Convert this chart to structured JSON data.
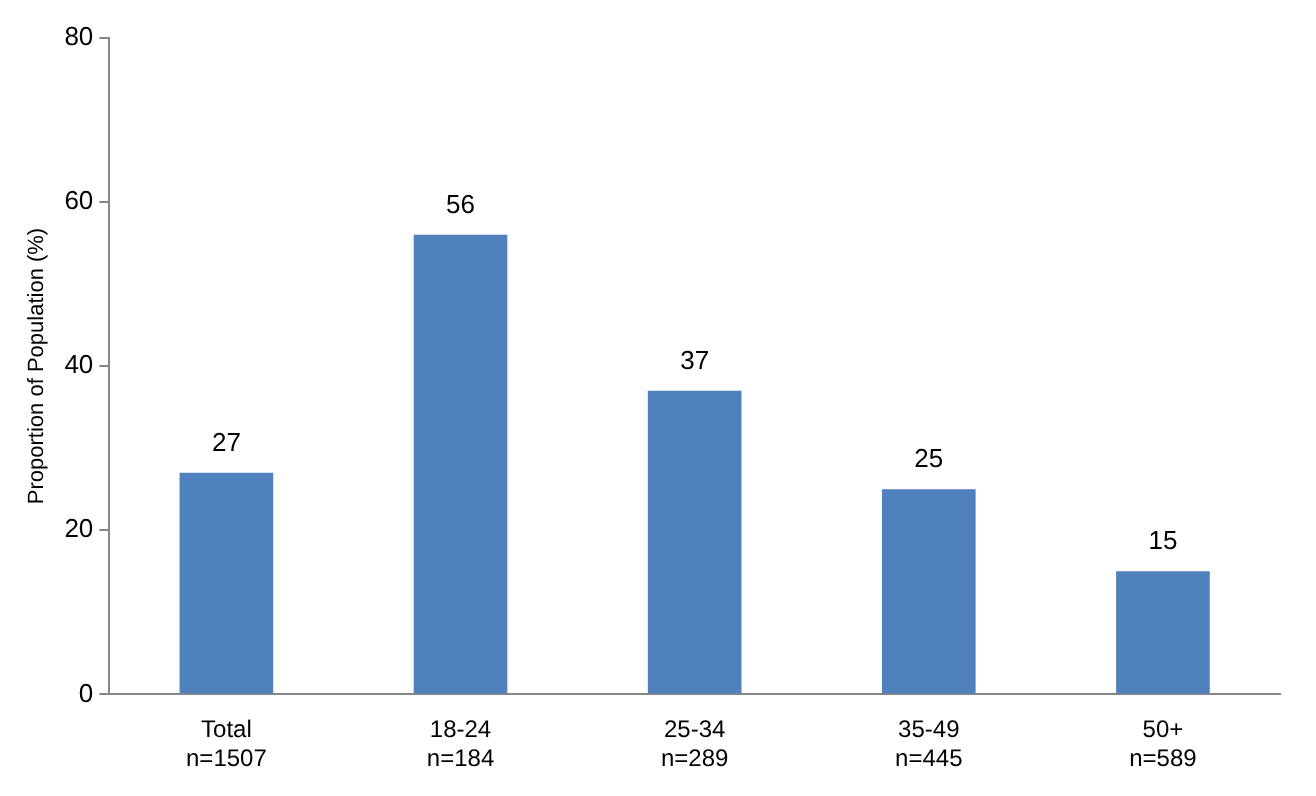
{
  "chart_data": {
    "type": "bar",
    "ylabel": "Proportion of Population (%)",
    "categories": [
      "Total\nn=1507",
      "18-24\nn=184",
      "25-34\nn=289",
      "35-49\nn=445",
      "50+\nn=589"
    ],
    "values": [
      27,
      56,
      37,
      25,
      15
    ],
    "color": "#4f81bd",
    "ylim": [
      0,
      80
    ],
    "yticks": [
      0,
      20,
      40,
      60,
      80
    ],
    "grid": false,
    "legend": false,
    "data_labels": true
  }
}
